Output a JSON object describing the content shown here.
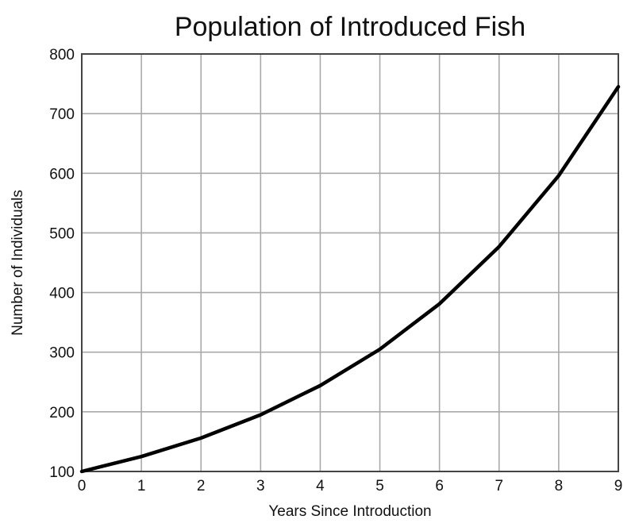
{
  "chart_data": {
    "type": "line",
    "title": "Population of Introduced Fish",
    "xlabel": "Years Since Introduction",
    "ylabel": "Number of Individuals",
    "xlim": [
      0,
      9
    ],
    "ylim": [
      100,
      800
    ],
    "xticks": [
      0,
      1,
      2,
      3,
      4,
      5,
      6,
      7,
      8,
      9
    ],
    "yticks": [
      100,
      200,
      300,
      400,
      500,
      600,
      700,
      800
    ],
    "grid": true,
    "legend": "none",
    "series": [
      {
        "color": "#000000",
        "x": [
          0,
          1,
          2,
          3,
          4,
          5,
          6,
          7,
          8,
          9
        ],
        "y": [
          100,
          125,
          156,
          195,
          244,
          305,
          381,
          477,
          596,
          745
        ]
      }
    ]
  }
}
